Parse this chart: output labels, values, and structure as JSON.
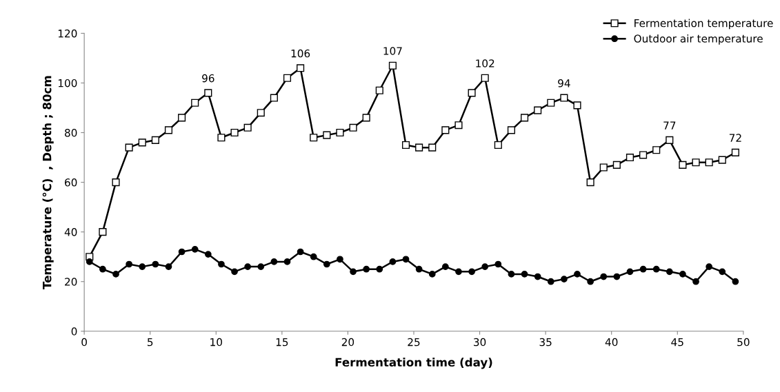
{
  "chart_data": {
    "type": "line",
    "xlabel": "Fermentation time (day)",
    "ylabel": "Temperature (°C)  , Depth ; 80cm",
    "x": [
      0.4,
      1.4,
      2.4,
      3.4,
      4.4,
      5.4,
      6.4,
      7.4,
      8.4,
      9.4,
      10.4,
      11.4,
      12.4,
      13.4,
      14.4,
      15.4,
      16.4,
      17.4,
      18.4,
      19.4,
      20.4,
      21.4,
      22.4,
      23.4,
      24.4,
      25.4,
      26.4,
      27.4,
      28.4,
      29.4,
      30.4,
      31.4,
      32.4,
      33.4,
      34.4,
      35.4,
      36.4,
      37.4,
      38.4,
      39.4,
      40.4,
      41.4,
      42.4,
      43.4,
      44.4,
      45.4,
      46.4,
      47.4,
      48.4,
      49.4
    ],
    "series": [
      {
        "name": "Fermentation temperature",
        "color": "#000000",
        "marker": "square",
        "values": [
          30,
          40,
          60,
          74,
          76,
          77,
          81,
          86,
          92,
          96,
          78,
          80,
          82,
          88,
          94,
          102,
          106,
          78,
          79,
          80,
          82,
          86,
          97,
          107,
          75,
          74,
          74,
          81,
          83,
          96,
          102,
          75,
          81,
          86,
          89,
          92,
          94,
          91,
          60,
          66,
          67,
          70,
          71,
          73,
          77,
          67,
          68,
          68,
          69,
          72
        ],
        "value_labels": [
          null,
          null,
          null,
          null,
          null,
          null,
          null,
          null,
          null,
          "96",
          null,
          null,
          null,
          null,
          null,
          null,
          "106",
          null,
          null,
          null,
          null,
          null,
          null,
          "107",
          null,
          null,
          null,
          null,
          null,
          null,
          "102",
          null,
          null,
          null,
          null,
          null,
          "94",
          null,
          null,
          null,
          null,
          null,
          null,
          null,
          "77",
          null,
          null,
          null,
          null,
          "72"
        ]
      },
      {
        "name": "Outdoor air temperature",
        "color": "#000000",
        "marker": "circle",
        "values": [
          28,
          25,
          23,
          27,
          26,
          27,
          26,
          32,
          33,
          31,
          27,
          24,
          26,
          26,
          28,
          28,
          32,
          30,
          27,
          29,
          24,
          25,
          25,
          28,
          29,
          25,
          23,
          26,
          24,
          24,
          26,
          27,
          23,
          23,
          22,
          20,
          21,
          23,
          20,
          22,
          22,
          24,
          25,
          25,
          24,
          23,
          20,
          26,
          24,
          20
        ]
      }
    ],
    "xlim": [
      0,
      50
    ],
    "xticks": [
      0,
      5,
      10,
      15,
      20,
      25,
      30,
      35,
      40,
      45,
      50
    ],
    "ylim": [
      0,
      120
    ],
    "yticks": [
      0,
      20,
      40,
      60,
      80,
      100,
      120
    ],
    "grid": false,
    "legend": "top right",
    "line_style": "solid"
  }
}
